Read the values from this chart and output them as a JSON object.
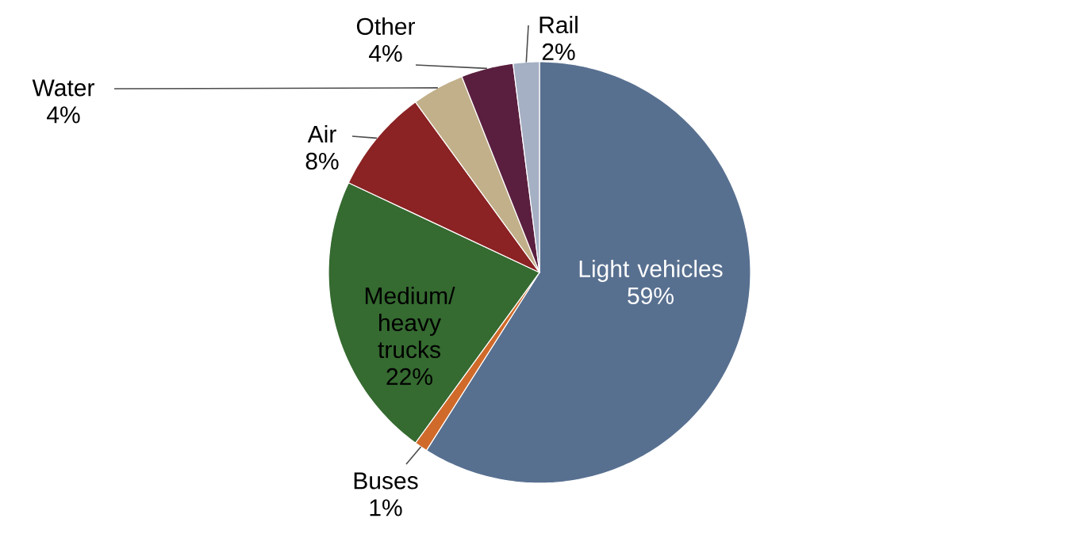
{
  "chart_data": {
    "type": "pie",
    "categories": [
      "Light vehicles",
      "Buses",
      "Medium/ heavy trucks",
      "Air",
      "Water",
      "Other",
      "Rail"
    ],
    "values": [
      59,
      1,
      22,
      8,
      4,
      4,
      2
    ],
    "value_labels": [
      "59%",
      "1%",
      "22%",
      "8%",
      "4%",
      "4%",
      "2%"
    ],
    "colors": [
      "#587090",
      "#d06a2a",
      "#356a30",
      "#8b2223",
      "#c2b08a",
      "#5a1f3f",
      "#a6b0c4"
    ]
  }
}
